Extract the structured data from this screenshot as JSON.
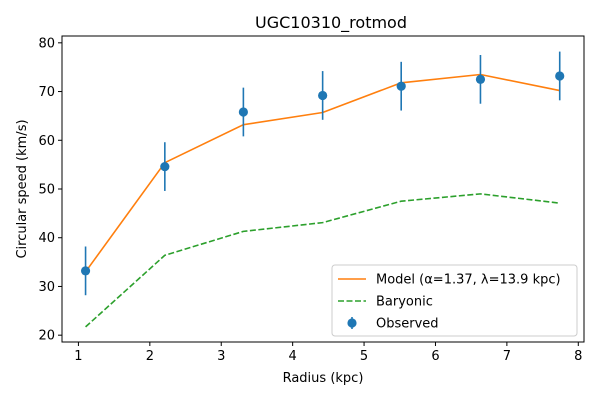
{
  "chart_data": {
    "type": "line",
    "title": "UGC10310_rotmod",
    "xlabel": "Radius (kpc)",
    "ylabel": "Circular speed (km/s)",
    "xlim": [
      0.77,
      8.08
    ],
    "ylim": [
      18.6,
      81.4
    ],
    "xticks": [
      1,
      2,
      3,
      4,
      5,
      6,
      7,
      8
    ],
    "yticks": [
      20,
      30,
      40,
      50,
      60,
      70,
      80
    ],
    "grid": false,
    "legend_position": "lower right",
    "series": [
      {
        "name": "Model (α=1.37, λ=13.9 kpc)",
        "kind": "line",
        "style": "solid",
        "color": "#ff7f0e",
        "x": [
          1.1,
          2.21,
          3.31,
          4.42,
          5.52,
          6.63,
          7.74
        ],
        "y": [
          33.0,
          55.4,
          63.2,
          65.7,
          71.8,
          73.5,
          70.2
        ]
      },
      {
        "name": "Baryonic",
        "kind": "line",
        "style": "dashed",
        "color": "#2ca02c",
        "x": [
          1.1,
          2.21,
          3.31,
          4.42,
          5.52,
          6.63,
          7.74
        ],
        "y": [
          21.7,
          36.4,
          41.3,
          43.1,
          47.5,
          49.0,
          47.1
        ]
      },
      {
        "name": "Observed",
        "kind": "errorbar",
        "color": "#1f77b4",
        "x": [
          1.1,
          2.21,
          3.31,
          4.42,
          5.52,
          6.63,
          7.74
        ],
        "y": [
          33.2,
          54.6,
          65.8,
          69.2,
          71.1,
          72.5,
          73.2
        ],
        "yerr": [
          5.0,
          5.0,
          5.0,
          5.0,
          5.0,
          5.0,
          5.0
        ]
      }
    ]
  }
}
